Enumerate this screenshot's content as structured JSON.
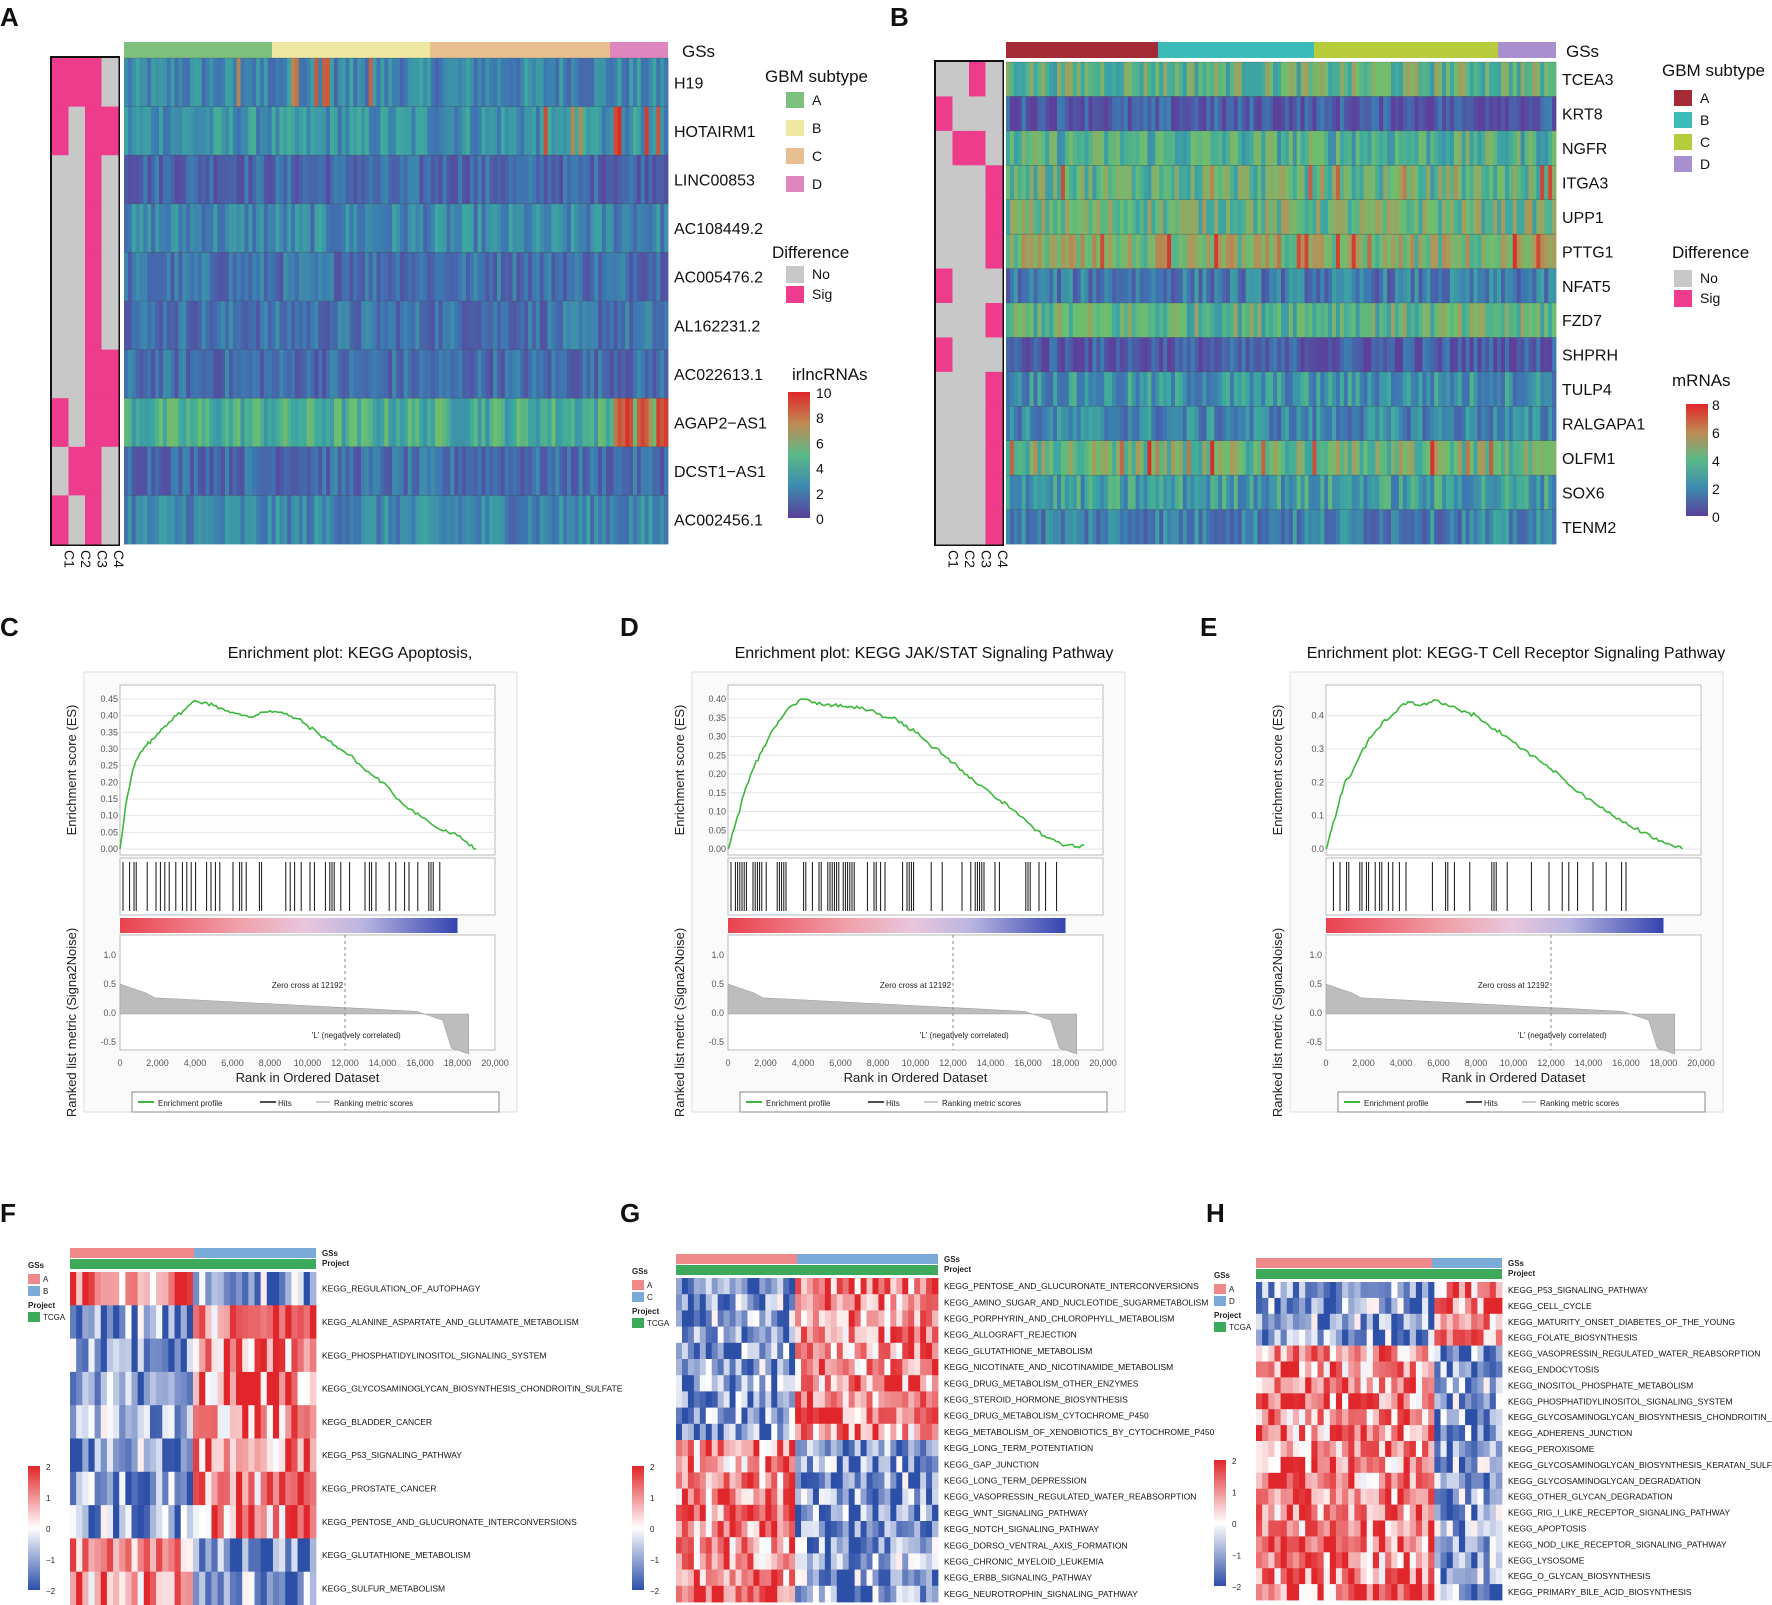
{
  "panel_labels": {
    "A": "A",
    "B": "B",
    "C": "C",
    "D": "D",
    "E": "E",
    "F": "F",
    "G": "G",
    "H": "H"
  },
  "colors": {
    "subtype_A_green": "#7dbf7c",
    "subtype_B_yellow": "#efe8a2",
    "subtype_C_tan": "#e8c08f",
    "subtype_D_pink": "#df86bf",
    "subtype_A_red": "#a42b35",
    "subtype_B_teal": "#3cbcb8",
    "subtype_C_olive": "#b6cc3b",
    "subtype_D_purple": "#a88fd0",
    "diff_no": "#c8c8c8",
    "diff_sig": "#ee3b8c",
    "es_line": "#3db83d",
    "heat_red": "#e0262a",
    "heat_blue": "#2c4fa8",
    "project_green": "#3caa5a",
    "gs_pink": "#f08a8a",
    "gs_blue": "#7aaad8"
  },
  "panelA": {
    "gss_label": "GSs",
    "columns": [
      "C1",
      "C2",
      "C3",
      "C4"
    ],
    "rows": [
      "H19",
      "HOTAIRM1",
      "LINC00853",
      "AC108449.2",
      "AC005476.2",
      "AL162231.2",
      "AC022613.1",
      "AGAP2−AS1",
      "DCST1−AS1",
      "AC002456.1"
    ],
    "difference": [
      [
        1,
        1,
        1,
        0
      ],
      [
        1,
        0,
        1,
        1
      ],
      [
        0,
        0,
        1,
        0
      ],
      [
        0,
        0,
        1,
        0
      ],
      [
        0,
        0,
        1,
        0
      ],
      [
        0,
        0,
        1,
        0
      ],
      [
        0,
        0,
        1,
        1
      ],
      [
        1,
        0,
        1,
        1
      ],
      [
        0,
        1,
        1,
        0
      ],
      [
        1,
        0,
        1,
        0
      ]
    ],
    "legend_subtype_title": "GBM subtype",
    "subtypes": [
      "A",
      "B",
      "C",
      "D"
    ],
    "legend_diff_title": "Difference",
    "diff_levels": [
      "No",
      "Sig"
    ],
    "scale_title": "irlncRNAs",
    "scale_ticks": [
      "10",
      "8",
      "6",
      "4",
      "2",
      "0"
    ]
  },
  "panelB": {
    "gss_label": "GSs",
    "columns": [
      "C1",
      "C2",
      "C3",
      "C4"
    ],
    "rows": [
      "TCEA3",
      "KRT8",
      "NGFR",
      "ITGA3",
      "UPP1",
      "PTTG1",
      "NFAT5",
      "FZD7",
      "SHPRH",
      "TULP4",
      "RALGAPA1",
      "OLFM1",
      "SOX6",
      "TENM2"
    ],
    "difference": [
      [
        0,
        0,
        1,
        0
      ],
      [
        1,
        0,
        0,
        0
      ],
      [
        0,
        1,
        1,
        0
      ],
      [
        0,
        0,
        0,
        1
      ],
      [
        0,
        0,
        0,
        1
      ],
      [
        0,
        0,
        0,
        1
      ],
      [
        1,
        0,
        0,
        0
      ],
      [
        0,
        0,
        0,
        1
      ],
      [
        1,
        0,
        0,
        0
      ],
      [
        0,
        0,
        0,
        1
      ],
      [
        0,
        0,
        0,
        1
      ],
      [
        0,
        0,
        0,
        1
      ],
      [
        0,
        0,
        0,
        1
      ],
      [
        0,
        0,
        0,
        1
      ]
    ],
    "legend_subtype_title": "GBM subtype",
    "subtypes": [
      "A",
      "B",
      "C",
      "D"
    ],
    "legend_diff_title": "Difference",
    "diff_levels": [
      "No",
      "Sig"
    ],
    "scale_title": "mRNAs",
    "scale_ticks": [
      "8",
      "6",
      "4",
      "2",
      "0"
    ]
  },
  "gsea_common": {
    "es_axis_label": "Enrichment score (ES)",
    "rank_axis_label": "Ranked list metric (Signa2Noise)",
    "x_axis_label": "Rank in Ordered Dataset",
    "x_ticks": [
      "0",
      "2,000",
      "4,000",
      "6,000",
      "8,000",
      "10,000",
      "12,000",
      "14,000",
      "16,000",
      "18,000",
      "20,000"
    ],
    "rank_ticks": [
      "1.0",
      "0.5",
      "0.0",
      "-0.5"
    ],
    "positively_label": "'H' (positively correlated)",
    "negatively_label": "'L' (negatively correlated)",
    "zero_cross": "Zero cross at 12192",
    "legend": [
      "Enrichment profile",
      "Hits",
      "Ranking metric scores"
    ]
  },
  "chart_data": [
    {
      "type": "line",
      "id": "C",
      "title": "Enrichment plot: KEGG Apoptosis,",
      "xlabel": "Rank in Ordered Dataset",
      "ylabel": "Enrichment score (ES)",
      "y_ticks": [
        "0.45",
        "0.40",
        "0.35",
        "0.30",
        "0.25",
        "0.20",
        "0.15",
        "0.10",
        "0.05",
        "0.00"
      ],
      "ylim": [
        0,
        0.45
      ],
      "xlim": [
        0,
        20000
      ],
      "x": [
        0,
        300,
        700,
        1000,
        1400,
        1800,
        2200,
        2600,
        3000,
        3500,
        4000,
        4500,
        5000,
        5500,
        6000,
        6500,
        7000,
        7500,
        8000,
        8500,
        9000,
        9500,
        10000,
        10500,
        11000,
        11500,
        12000,
        12500,
        13000,
        13500,
        14000,
        14500,
        15000,
        15500,
        16000,
        16500,
        17000,
        17500,
        18000,
        18500,
        19000
      ],
      "y": [
        0,
        0.13,
        0.24,
        0.28,
        0.31,
        0.33,
        0.36,
        0.38,
        0.4,
        0.42,
        0.445,
        0.44,
        0.43,
        0.42,
        0.41,
        0.4,
        0.395,
        0.41,
        0.415,
        0.41,
        0.4,
        0.39,
        0.37,
        0.35,
        0.33,
        0.31,
        0.29,
        0.27,
        0.24,
        0.22,
        0.2,
        0.17,
        0.14,
        0.12,
        0.1,
        0.08,
        0.06,
        0.05,
        0.04,
        0.02,
        0.0
      ]
    },
    {
      "type": "line",
      "id": "D",
      "title": "Enrichment plot: KEGG JAK/STAT Signaling Pathway",
      "xlabel": "Rank in Ordered Dataset",
      "ylabel": "Enrichment score (ES)",
      "y_ticks": [
        "0.40",
        "0.35",
        "0.30",
        "0.25",
        "0.20",
        "0.15",
        "0.10",
        "0.05",
        "0.00"
      ],
      "ylim": [
        0,
        0.4
      ],
      "xlim": [
        0,
        20000
      ],
      "x": [
        0,
        300,
        700,
        1000,
        1400,
        1800,
        2200,
        2600,
        3000,
        3500,
        4000,
        4500,
        5000,
        5500,
        6000,
        6500,
        7000,
        7500,
        8000,
        8500,
        9000,
        9500,
        10000,
        10500,
        11000,
        11500,
        12000,
        12500,
        13000,
        13500,
        14000,
        14500,
        15000,
        15500,
        16000,
        16500,
        17000,
        17500,
        18000,
        18500,
        19000
      ],
      "y": [
        0,
        0.05,
        0.12,
        0.17,
        0.22,
        0.26,
        0.3,
        0.33,
        0.36,
        0.385,
        0.4,
        0.39,
        0.385,
        0.38,
        0.385,
        0.38,
        0.375,
        0.37,
        0.36,
        0.35,
        0.345,
        0.33,
        0.31,
        0.29,
        0.27,
        0.25,
        0.23,
        0.21,
        0.19,
        0.17,
        0.15,
        0.13,
        0.11,
        0.09,
        0.07,
        0.05,
        0.03,
        0.02,
        0.01,
        0.005,
        0.01
      ]
    },
    {
      "type": "line",
      "id": "E",
      "title": "Enrichment plot: KEGG-T Cell Receptor Signaling Pathway",
      "xlabel": "Rank in Ordered Dataset",
      "ylabel": "Enrichment score (ES)",
      "y_ticks": [
        "0.4",
        "0.3",
        "0.2",
        "0.1",
        "0.0"
      ],
      "ylim": [
        0,
        0.45
      ],
      "xlim": [
        0,
        20000
      ],
      "x": [
        0,
        300,
        700,
        1000,
        1400,
        1800,
        2200,
        2600,
        3000,
        3500,
        4000,
        4500,
        5000,
        5500,
        6000,
        6500,
        7000,
        7500,
        8000,
        8500,
        9000,
        9500,
        10000,
        10500,
        11000,
        11500,
        12000,
        12500,
        13000,
        13500,
        14000,
        14500,
        15000,
        15500,
        16000,
        16500,
        17000,
        17500,
        18000,
        18500,
        19000
      ],
      "y": [
        0,
        0.06,
        0.14,
        0.2,
        0.23,
        0.28,
        0.32,
        0.35,
        0.38,
        0.4,
        0.43,
        0.44,
        0.43,
        0.44,
        0.445,
        0.43,
        0.42,
        0.41,
        0.4,
        0.38,
        0.36,
        0.34,
        0.32,
        0.3,
        0.28,
        0.26,
        0.24,
        0.22,
        0.19,
        0.17,
        0.15,
        0.13,
        0.11,
        0.09,
        0.08,
        0.06,
        0.05,
        0.03,
        0.02,
        0.01,
        0.0
      ]
    },
    {
      "type": "heatmap",
      "id": "F",
      "groups": [
        "A",
        "B"
      ],
      "rows": [
        "KEGG_REGULATION_OF_AUTOPHAGY",
        "KEGG_ALANINE_ASPARTATE_AND_GLUTAMATE_METABOLISM",
        "KEGG_PHOSPHATIDYLINOSITOL_SIGNALING_SYSTEM",
        "KEGG_GLYCOSAMINOGLYCAN_BIOSYNTHESIS_CHONDROITIN_SULFATE",
        "KEGG_BLADDER_CANCER",
        "KEGG_P53_SIGNALING_PATHWAY",
        "KEGG_PROSTATE_CANCER",
        "KEGG_PENTOSE_AND_GLUCURONATE_INTERCONVERSIONS",
        "KEGG_GLUTATHIONE_METABOLISM",
        "KEGG_SULFUR_METABOLISM"
      ],
      "scale": [
        "2",
        "1",
        "0",
        "−1",
        "−2"
      ]
    },
    {
      "type": "heatmap",
      "id": "G",
      "groups": [
        "A",
        "C"
      ],
      "rows": [
        "KEGG_PENTOSE_AND_GLUCURONATE_INTERCONVERSIONS",
        "KEGG_AMINO_SUGAR_AND_NUCLEOTIDE_SUGARMETABOLISM",
        "KEGG_PORPHYRIN_AND_CHLOROPHYLL_METABOLISM",
        "KEGG_ALLOGRAFT_REJECTION",
        "KEGG_GLUTATHIONE_METABOLISM",
        "KEGG_NICOTINATE_AND_NICOTINAMIDE_METABOLISM",
        "KEGG_DRUG_METABOLISM_OTHER_ENZYMES",
        "KEGG_STEROID_HORMONE_BIOSYNTHESIS",
        "KEGG_DRUG_METABOLISM_CYTOCHROME_P450",
        "KEGG_METABOLISM_OF_XENOBIOTICS_BY_CYTOCHROME_P450",
        "KEGG_LONG_TERM_POTENTIATION",
        "KEGG_GAP_JUNCTION",
        "KEGG_LONG_TERM_DEPRESSION",
        "KEGG_VASOPRESSIN_REGULATED_WATER_REABSORPTION",
        "KEGG_WNT_SIGNALING_PATHWAY",
        "KEGG_NOTCH_SIGNALING_PATHWAY",
        "KEGG_DORSO_VENTRAL_AXIS_FORMATION",
        "KEGG_CHRONIC_MYELOID_LEUKEMIA",
        "KEGG_ERBB_SIGNALING_PATHWAY",
        "KEGG_NEUROTROPHIN_SIGNALING_PATHWAY"
      ],
      "scale": [
        "2",
        "1",
        "0",
        "−1",
        "−2"
      ]
    },
    {
      "type": "heatmap",
      "id": "H",
      "groups": [
        "A",
        "D"
      ],
      "rows": [
        "KEGG_P53_SIGNALING_PATHWAY",
        "KEGG_CELL_CYCLE",
        "KEGG_MATURITY_ONSET_DIABETES_OF_THE_YOUNG",
        "KEGG_FOLATE_BIOSYNTHESIS",
        "KEGG_VASOPRESSIN_REGULATED_WATER_REABSORPTION",
        "KEGG_ENDOCYTOSIS",
        "KEGG_INOSITOL_PHOSPHATE_METABOLISM",
        "KEGG_PHOSPHATIDYLINOSITOL_SIGNALING_SYSTEM",
        "KEGG_GLYCOSAMINOGLYCAN_BIOSYNTHESIS_CHONDROITIN_SULFATE",
        "KEGG_ADHERENS_JUNCTION",
        "KEGG_PEROXISOME",
        "KEGG_GLYCOSAMINOGLYCAN_BIOSYNTHESIS_KERATAN_SULFATE",
        "KEGG_GLYCOSAMINOGLYCAN_DEGRADATION",
        "KEGG_OTHER_GLYCAN_DEGRADATION",
        "KEGG_RIG_I_LIKE_RECEPTOR_SIGNALING_PATHWAY",
        "KEGG_APOPTOSIS",
        "KEGG_NOD_LIKE_RECEPTOR_SIGNALING_PATHWAY",
        "KEGG_LYSOSOME",
        "KEGG_O_GLYCAN_BIOSYNTHESIS",
        "KEGG_PRIMARY_BILE_ACID_BIOSYNTHESIS"
      ],
      "scale": [
        "2",
        "1",
        "0",
        "−1",
        "−2"
      ]
    }
  ],
  "heat_legend": {
    "gss": "GSs",
    "project": "Project",
    "project_value": "TCGA"
  }
}
